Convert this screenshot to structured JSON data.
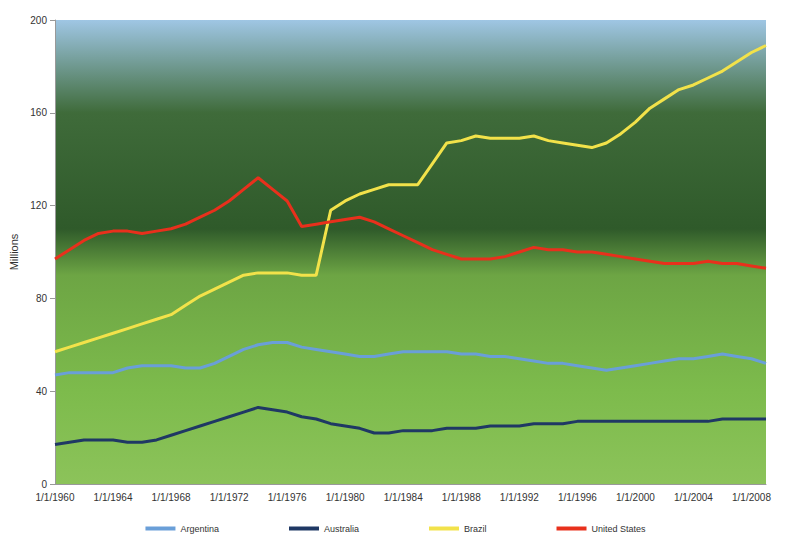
{
  "chart_data": {
    "type": "line",
    "y_label": "Millions",
    "categories": [
      "1/1/1960",
      null,
      null,
      null,
      "1/1/1964",
      null,
      null,
      null,
      "1/1/1968",
      null,
      null,
      null,
      "1/1/1972",
      null,
      null,
      null,
      "1/1/1976",
      null,
      null,
      null,
      "1/1/1980",
      null,
      null,
      null,
      "1/1/1984",
      null,
      null,
      null,
      "1/1/1988",
      null,
      null,
      null,
      "1/1/1992",
      null,
      null,
      null,
      "1/1/1996",
      null,
      null,
      null,
      "1/1/2000",
      null,
      null,
      null,
      "1/1/2004",
      null,
      null,
      null,
      "1/1/2008",
      null
    ],
    "series": [
      {
        "name": "Argentina",
        "color": "#6a9fd8",
        "values": [
          47,
          48,
          48,
          48,
          48,
          50,
          51,
          51,
          51,
          50,
          50,
          52,
          55,
          58,
          60,
          61,
          61,
          59,
          58,
          57,
          56,
          55,
          55,
          56,
          57,
          57,
          57,
          57,
          56,
          56,
          55,
          55,
          54,
          53,
          52,
          52,
          51,
          50,
          49,
          50,
          51,
          52,
          53,
          54,
          54,
          55,
          56,
          55,
          54,
          52
        ]
      },
      {
        "name": "Australia",
        "color": "#1f3864",
        "values": [
          17,
          18,
          19,
          19,
          19,
          18,
          18,
          19,
          21,
          23,
          25,
          27,
          29,
          31,
          33,
          32,
          31,
          29,
          28,
          26,
          25,
          24,
          22,
          22,
          23,
          23,
          23,
          24,
          24,
          24,
          25,
          25,
          25,
          26,
          26,
          26,
          27,
          27,
          27,
          27,
          27,
          27,
          27,
          27,
          27,
          27,
          28,
          28,
          28,
          28
        ]
      },
      {
        "name": "Brazil",
        "color": "#f2e24a",
        "values": [
          57,
          59,
          61,
          63,
          65,
          67,
          69,
          71,
          73,
          77,
          81,
          84,
          87,
          90,
          91,
          91,
          91,
          90,
          90,
          118,
          122,
          125,
          127,
          129,
          129,
          129,
          138,
          147,
          148,
          150,
          149,
          149,
          149,
          150,
          148,
          147,
          146,
          145,
          147,
          151,
          156,
          162,
          166,
          170,
          172,
          175,
          178,
          182,
          186,
          189
        ]
      },
      {
        "name": "United States",
        "color": "#e8301c",
        "values": [
          97,
          101,
          105,
          108,
          109,
          109,
          108,
          109,
          110,
          112,
          115,
          118,
          122,
          127,
          132,
          127,
          122,
          111,
          112,
          113,
          114,
          115,
          113,
          110,
          107,
          104,
          101,
          99,
          97,
          97,
          97,
          98,
          100,
          102,
          101,
          101,
          100,
          100,
          99,
          98,
          97,
          96,
          95,
          95,
          95,
          96,
          95,
          95,
          94,
          93
        ]
      }
    ],
    "ylim": [
      0,
      200
    ],
    "yticks": [
      0,
      40,
      80,
      120,
      160,
      200
    ],
    "grid": false,
    "legend": "bottom",
    "marker": "none"
  }
}
